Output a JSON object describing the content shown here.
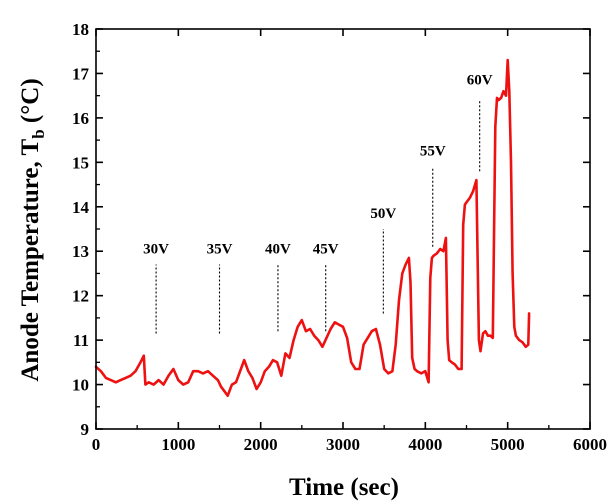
{
  "chart_data": {
    "type": "line",
    "xlabel": "Time (sec)",
    "ylabel_main": "Anode Temperature, T",
    "ylabel_sub": "b",
    "ylabel_unit": " (°C)",
    "xlim": [
      0,
      6000
    ],
    "ylim": [
      9,
      18
    ],
    "xticks": [
      0,
      1000,
      2000,
      3000,
      4000,
      5000,
      6000
    ],
    "yticks": [
      9,
      10,
      11,
      12,
      13,
      14,
      15,
      16,
      17,
      18
    ],
    "grid": false,
    "series_color": "#ee1111",
    "series": [
      {
        "x": [
          0,
          60,
          120,
          180,
          240,
          300,
          360,
          420,
          480,
          540,
          580,
          600,
          640,
          700,
          760,
          820,
          880,
          940,
          1000,
          1060,
          1120,
          1180,
          1240,
          1300,
          1360,
          1420,
          1480,
          1520,
          1560,
          1600,
          1650,
          1700,
          1760,
          1800,
          1850,
          1900,
          1950,
          2000,
          2050,
          2100,
          2150,
          2200,
          2250,
          2300,
          2350,
          2400,
          2450,
          2500,
          2550,
          2600,
          2650,
          2700,
          2750,
          2800,
          2850,
          2900,
          2950,
          3000,
          3050,
          3100,
          3150,
          3200,
          3250,
          3300,
          3350,
          3400,
          3450,
          3500,
          3550,
          3600,
          3640,
          3680,
          3720,
          3760,
          3800,
          3820,
          3840,
          3870,
          3900,
          3950,
          4000,
          4040,
          4060,
          4080,
          4100,
          4140,
          4180,
          4220,
          4250,
          4270,
          4290,
          4320,
          4360,
          4400,
          4440,
          4460,
          4480,
          4500,
          4540,
          4580,
          4620,
          4650,
          4670,
          4700,
          4730,
          4760,
          4790,
          4820,
          4850,
          4870,
          4890,
          4920,
          4950,
          4980,
          5000,
          5020,
          5040,
          5060,
          5080,
          5100,
          5140,
          5180,
          5220,
          5250,
          5260
        ],
        "y": [
          10.4,
          10.3,
          10.15,
          10.1,
          10.05,
          10.1,
          10.15,
          10.2,
          10.3,
          10.5,
          10.65,
          10.0,
          10.05,
          10.0,
          10.1,
          10.0,
          10.2,
          10.35,
          10.1,
          10.0,
          10.05,
          10.3,
          10.3,
          10.25,
          10.3,
          10.2,
          10.1,
          9.95,
          9.85,
          9.75,
          10.0,
          10.05,
          10.35,
          10.55,
          10.3,
          10.15,
          9.9,
          10.05,
          10.3,
          10.4,
          10.55,
          10.5,
          10.2,
          10.7,
          10.6,
          11.0,
          11.3,
          11.45,
          11.2,
          11.25,
          11.1,
          11.0,
          10.85,
          11.05,
          11.25,
          11.4,
          11.35,
          11.3,
          11.05,
          10.5,
          10.35,
          10.35,
          10.9,
          11.05,
          11.2,
          11.25,
          10.9,
          10.35,
          10.25,
          10.3,
          10.9,
          11.9,
          12.5,
          12.7,
          12.85,
          12.3,
          10.6,
          10.35,
          10.3,
          10.25,
          10.3,
          10.05,
          12.4,
          12.85,
          12.9,
          12.95,
          13.05,
          13.0,
          13.3,
          11.0,
          10.55,
          10.5,
          10.45,
          10.35,
          10.35,
          13.6,
          14.05,
          14.1,
          14.2,
          14.35,
          14.6,
          11.0,
          10.75,
          11.15,
          11.2,
          11.1,
          11.1,
          11.05,
          15.8,
          16.45,
          16.4,
          16.45,
          16.6,
          16.5,
          17.3,
          16.6,
          15.0,
          12.5,
          11.3,
          11.1,
          11.0,
          10.95,
          10.85,
          10.9,
          11.6
        ]
      }
    ],
    "annotations": [
      {
        "label": "30V",
        "x": 730,
        "line_from": 11.15,
        "line_to": 12.7,
        "label_y": 12.95
      },
      {
        "label": "35V",
        "x": 1500,
        "line_from": 11.15,
        "line_to": 12.7,
        "label_y": 12.95
      },
      {
        "label": "40V",
        "x": 2210,
        "line_from": 11.2,
        "line_to": 12.7,
        "label_y": 12.95
      },
      {
        "label": "45V",
        "x": 2790,
        "line_from": 11.2,
        "line_to": 12.7,
        "label_y": 12.95
      },
      {
        "label": "50V",
        "x": 3490,
        "line_from": 11.6,
        "line_to": 13.5,
        "label_y": 13.75
      },
      {
        "label": "55V",
        "x": 4090,
        "line_from": 13.1,
        "line_to": 14.9,
        "label_y": 15.15
      },
      {
        "label": "60V",
        "x": 4660,
        "line_from": 14.8,
        "line_to": 16.4,
        "label_y": 16.75
      }
    ]
  }
}
